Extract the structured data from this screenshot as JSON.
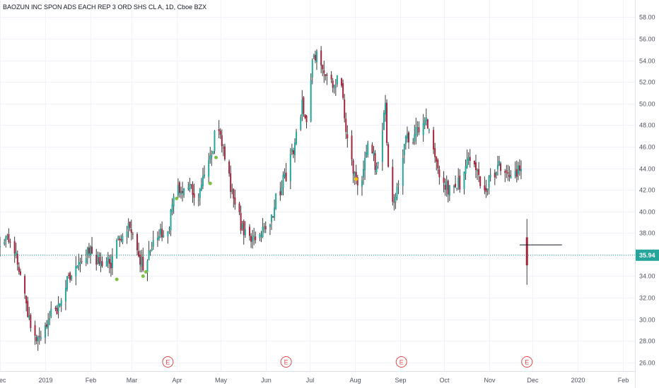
{
  "chart_data": {
    "type": "candlestick",
    "title": "BAOZUN INC SPON ADS EACH REP 3 ORD SHS CL A, 1D, Cboe BZX",
    "ylim": [
      25.2,
      59.6
    ],
    "y_ticks": [
      "26.00",
      "28.00",
      "30.00",
      "32.00",
      "34.00",
      "36.00",
      "38.00",
      "40.00",
      "42.00",
      "44.00",
      "46.00",
      "48.00",
      "50.00",
      "52.00",
      "54.00",
      "56.00",
      "58.00"
    ],
    "x_labels": [
      "Dec",
      "2019",
      "Feb",
      "Mar",
      "Apr",
      "May",
      "Jun",
      "Jul",
      "Aug",
      "Sep",
      "Oct",
      "Nov",
      "Dec",
      "2020",
      "Feb"
    ],
    "x_label_days": [
      -31,
      0,
      31,
      59,
      90,
      120,
      151,
      181,
      212,
      243,
      273,
      304,
      334,
      365,
      396
    ],
    "x_range": [
      -31,
      404
    ],
    "last_price": 35.94,
    "last_price_label": "35.94",
    "colors": {
      "up": "#26a69a",
      "down": "#a3243b",
      "wick": "#3b3b3b",
      "price_line": "#26a69a",
      "earnings": "#e04848",
      "dividend_green": "#7cc142",
      "dividend_yellow": "#f2c200"
    },
    "earnings_label": "E",
    "earnings_days": [
      84,
      165,
      244,
      330
    ],
    "marker_points": [
      {
        "day": 49,
        "price": 33.7,
        "color": "green"
      },
      {
        "day": 67,
        "price": 34.0,
        "color": "green"
      },
      {
        "day": 69,
        "price": 34.4,
        "color": "green"
      },
      {
        "day": 90,
        "price": 41.2,
        "color": "green"
      },
      {
        "day": 113,
        "price": 42.6,
        "color": "green"
      },
      {
        "day": 117,
        "price": 45.0,
        "color": "green"
      },
      {
        "day": 213,
        "price": 43.0,
        "color": "yellow"
      }
    ],
    "anchors": [
      [
        -31,
        36.5
      ],
      [
        -25,
        37.2
      ],
      [
        -20,
        36.0
      ],
      [
        -14,
        32.0
      ],
      [
        -8,
        28.2
      ],
      [
        -3,
        28.5
      ],
      [
        0,
        29.2
      ],
      [
        5,
        31.5
      ],
      [
        10,
        31.0
      ],
      [
        15,
        33.5
      ],
      [
        20,
        34.5
      ],
      [
        25,
        35.5
      ],
      [
        31,
        36.5
      ],
      [
        36,
        35.5
      ],
      [
        41,
        34.8
      ],
      [
        46,
        35.5
      ],
      [
        51,
        37.5
      ],
      [
        55,
        38.5
      ],
      [
        59,
        38.0
      ],
      [
        62,
        37.0
      ],
      [
        64,
        36.0
      ],
      [
        67,
        35.0
      ],
      [
        71,
        36.0
      ],
      [
        75,
        37.5
      ],
      [
        80,
        38.0
      ],
      [
        85,
        39.0
      ],
      [
        90,
        42.5
      ],
      [
        93,
        42.0
      ],
      [
        97,
        42.5
      ],
      [
        101,
        42.0
      ],
      [
        105,
        41.5
      ],
      [
        109,
        43.0
      ],
      [
        113,
        44.5
      ],
      [
        118,
        48.5
      ],
      [
        122,
        46.0
      ],
      [
        126,
        43.0
      ],
      [
        131,
        40.0
      ],
      [
        135,
        38.5
      ],
      [
        140,
        37.5
      ],
      [
        144,
        37.0
      ],
      [
        149,
        38.0
      ],
      [
        154,
        39.0
      ],
      [
        159,
        41.5
      ],
      [
        165,
        43.5
      ],
      [
        171,
        46.5
      ],
      [
        176,
        50.0
      ],
      [
        180,
        48.5
      ],
      [
        183,
        54.0
      ],
      [
        187,
        54.2
      ],
      [
        192,
        53.0
      ],
      [
        197,
        51.5
      ],
      [
        202,
        52.5
      ],
      [
        206,
        48.0
      ],
      [
        209,
        45.5
      ],
      [
        212,
        43.0
      ],
      [
        216,
        42.5
      ],
      [
        220,
        45.5
      ],
      [
        223,
        46.0
      ],
      [
        227,
        44.0
      ],
      [
        230,
        47.5
      ],
      [
        233,
        49.5
      ],
      [
        236,
        42.0
      ],
      [
        239,
        40.5
      ],
      [
        243,
        43.0
      ],
      [
        247,
        47.0
      ],
      [
        251,
        46.0
      ],
      [
        256,
        48.0
      ],
      [
        261,
        48.5
      ],
      [
        265,
        47.0
      ],
      [
        268,
        45.0
      ],
      [
        271,
        43.0
      ],
      [
        276,
        42.0
      ],
      [
        280,
        43.0
      ],
      [
        284,
        42.5
      ],
      [
        289,
        45.0
      ],
      [
        293,
        45.5
      ],
      [
        297,
        43.0
      ],
      [
        301,
        41.5
      ],
      [
        306,
        43.5
      ],
      [
        311,
        44.0
      ],
      [
        316,
        43.0
      ],
      [
        320,
        43.5
      ],
      [
        325,
        44.0
      ],
      [
        327,
        43.5
      ]
    ],
    "big_candle": {
      "day": 330,
      "open": 37.6,
      "high": 39.3,
      "low": 33.2,
      "close": 35.0
    },
    "crosshair_price": 36.9,
    "crosshair_days": [
      325,
      354
    ]
  }
}
